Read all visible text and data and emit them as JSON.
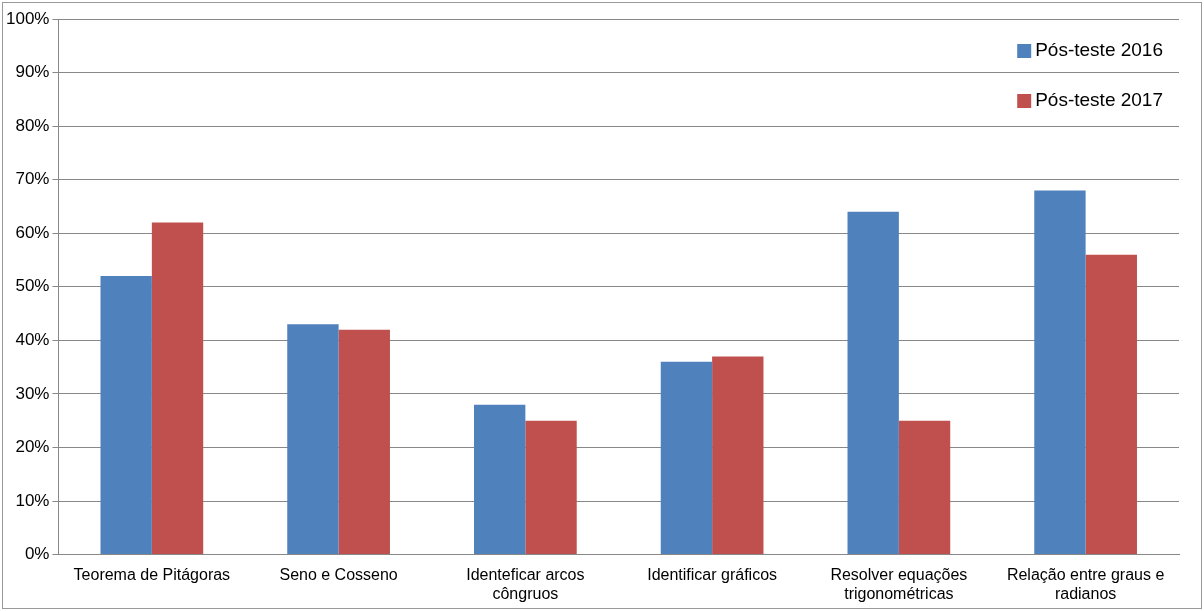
{
  "chart_data": {
    "type": "bar",
    "categories": [
      "Teorema de Pitágoras",
      "Seno e Cosseno",
      "Identeficar arcos côngruos",
      "Identificar gráficos",
      "Resolver equações trigonométricas",
      "Relação entre graus e radianos"
    ],
    "series": [
      {
        "name": "Pós-teste 2016",
        "color": "#4f81bd",
        "values": [
          52,
          43,
          28,
          36,
          64,
          68
        ]
      },
      {
        "name": "Pós-teste 2017",
        "color": "#c0504d",
        "values": [
          62,
          42,
          25,
          37,
          25,
          56
        ]
      }
    ],
    "ylim": [
      0,
      100
    ],
    "yticks": [
      {
        "value": 0,
        "label": "0%"
      },
      {
        "value": 10,
        "label": "10%"
      },
      {
        "value": 20,
        "label": "20%"
      },
      {
        "value": 30,
        "label": "30%"
      },
      {
        "value": 40,
        "label": "40%"
      },
      {
        "value": 50,
        "label": "50%"
      },
      {
        "value": 60,
        "label": "60%"
      },
      {
        "value": 70,
        "label": "70%"
      },
      {
        "value": 80,
        "label": "80%"
      },
      {
        "value": 90,
        "label": "90%"
      },
      {
        "value": 100,
        "label": "100%"
      }
    ],
    "grid": "y",
    "legend": "top right"
  }
}
